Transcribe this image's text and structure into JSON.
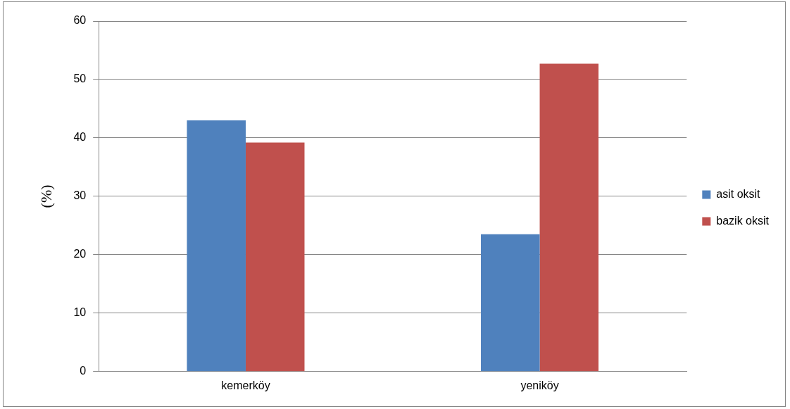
{
  "chart_data": {
    "type": "bar",
    "ylabel": "(%)",
    "categories": [
      "kemerköy",
      "yeniköy"
    ],
    "series": [
      {
        "name": "asit oksit",
        "color": "#4f81bd",
        "values": [
          43,
          23.5
        ]
      },
      {
        "name": "bazik oksit",
        "color": "#c0504d",
        "values": [
          39.2,
          52.7
        ]
      }
    ],
    "ylim": [
      0,
      60
    ],
    "yticks": [
      0,
      10,
      20,
      30,
      40,
      50,
      60
    ],
    "grid": "y",
    "legend": "right"
  }
}
